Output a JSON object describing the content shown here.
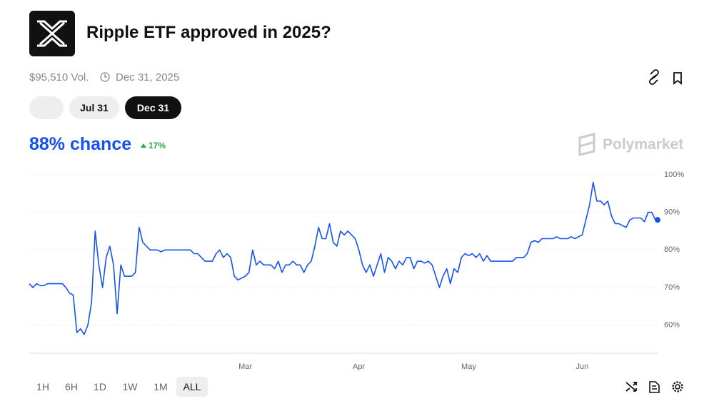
{
  "header": {
    "title": "Ripple ETF approved in 2025?",
    "volume": "$95,510 Vol.",
    "end_date": "Dec 31, 2025"
  },
  "date_buttons": [
    "Jul 31",
    "Dec 31"
  ],
  "summary": {
    "chance": "88% chance",
    "change": "17%",
    "brand": "Polymarket"
  },
  "range_buttons": [
    "1H",
    "6H",
    "1D",
    "1W",
    "1M",
    "ALL"
  ],
  "chart_data": {
    "type": "line",
    "color": "#1652f0",
    "grid": true,
    "ylim": [
      52.5,
      100
    ],
    "yticks": [
      {
        "value": 60,
        "label": "60%"
      },
      {
        "value": 70,
        "label": "70%"
      },
      {
        "value": 80,
        "label": "80%"
      },
      {
        "value": 90,
        "label": "90%"
      },
      {
        "value": 100,
        "label": "100%"
      }
    ],
    "categories": [
      null,
      null,
      null,
      null,
      null,
      null,
      null,
      null,
      null,
      null,
      null,
      null,
      null,
      null,
      null,
      null,
      null,
      null,
      null,
      null,
      null,
      null,
      null,
      null,
      null,
      null,
      null,
      null,
      null,
      null,
      null,
      null,
      null,
      null,
      null,
      null,
      null,
      null,
      null,
      null,
      null,
      null,
      null,
      null,
      null,
      null,
      null,
      null,
      null,
      null,
      null,
      null,
      null,
      null,
      null,
      null,
      null,
      null,
      null,
      "Mar",
      null,
      null,
      null,
      null,
      null,
      null,
      null,
      null,
      null,
      null,
      null,
      null,
      null,
      null,
      null,
      null,
      null,
      null,
      null,
      null,
      null,
      null,
      null,
      null,
      null,
      null,
      null,
      null,
      null,
      null,
      "Apr",
      null,
      null,
      null,
      null,
      null,
      null,
      null,
      null,
      null,
      null,
      null,
      null,
      null,
      null,
      null,
      null,
      null,
      null,
      null,
      null,
      null,
      null,
      null,
      null,
      null,
      null,
      null,
      null,
      null,
      "May",
      null,
      null,
      null,
      null,
      null,
      null,
      null,
      null,
      null,
      null,
      null,
      null,
      null,
      null,
      null,
      null,
      null,
      null,
      null,
      null,
      null,
      null,
      null,
      null,
      null,
      null,
      null,
      null,
      null,
      null,
      "Jun",
      null,
      null,
      null,
      null,
      null,
      null,
      null,
      null,
      null,
      null,
      null,
      null,
      null,
      null,
      null,
      null,
      null,
      null,
      null,
      null
    ],
    "values": [
      71,
      70,
      71,
      70.5,
      70.5,
      71,
      71,
      71,
      71,
      71,
      70,
      68.5,
      68,
      58,
      59,
      57.5,
      60,
      66,
      85,
      76,
      70,
      78,
      81,
      76,
      63,
      76,
      73,
      73,
      73,
      74,
      86,
      82,
      81,
      80,
      80,
      80,
      79.5,
      80,
      80,
      80,
      80,
      80,
      80,
      80,
      80,
      79,
      79,
      78,
      77,
      77,
      77,
      79,
      80,
      78,
      79,
      78,
      73,
      72,
      72.5,
      73,
      74,
      80,
      76,
      77,
      76,
      76,
      76,
      75,
      77,
      74,
      76,
      76,
      77,
      76,
      76,
      74,
      76,
      77,
      81,
      86,
      83,
      83,
      87,
      82,
      81,
      85,
      84,
      85,
      84,
      83,
      80,
      76,
      74,
      76,
      73,
      76,
      79,
      74,
      78,
      77,
      75,
      77,
      76,
      78,
      78,
      75,
      77,
      77,
      76.5,
      77,
      76,
      73,
      70,
      73,
      75,
      71,
      75,
      74,
      78,
      79,
      78.5,
      79,
      78,
      79,
      77,
      78.5,
      77,
      77,
      77,
      77,
      77,
      77,
      77,
      78,
      78,
      78,
      79,
      82,
      82.5,
      82,
      83,
      83,
      83,
      83,
      83.5,
      83,
      83,
      83,
      83.5,
      83,
      83.5,
      84,
      88,
      92,
      98,
      93,
      93,
      92,
      93,
      89,
      87,
      87,
      86.5,
      86,
      88,
      88.5,
      88.5,
      88.5,
      87.5,
      90,
      90,
      88
    ]
  }
}
